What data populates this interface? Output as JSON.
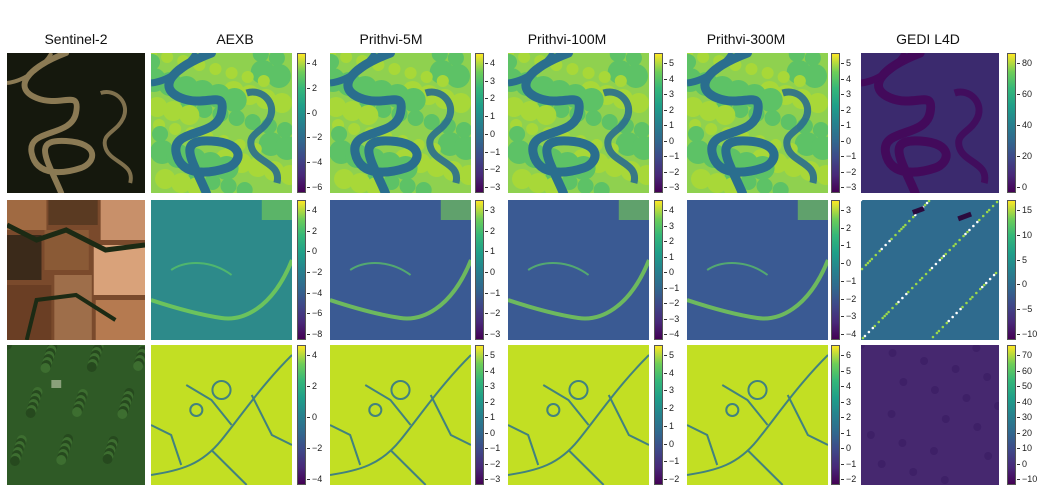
{
  "figure": {
    "columns": [
      {
        "title": "Sentinel-2"
      },
      {
        "title": "AEXB"
      },
      {
        "title": "Prithvi-5M"
      },
      {
        "title": "Prithvi-100M"
      },
      {
        "title": "Prithvi-300M"
      },
      {
        "title": "GEDI L4D"
      }
    ],
    "rows": [
      {
        "scene": "river",
        "colorbars": [
          [
            "4",
            "2",
            "0",
            "−2",
            "−4",
            "−6"
          ],
          [
            "4",
            "3",
            "2",
            "1",
            "0",
            "−1",
            "−2",
            "−3"
          ],
          [
            "5",
            "4",
            "3",
            "2",
            "1",
            "0",
            "−1",
            "−2",
            "−3"
          ],
          [
            "5",
            "4",
            "3",
            "2",
            "1",
            "0",
            "−1",
            "−2",
            "−3"
          ],
          [
            "80",
            "60",
            "40",
            "20",
            "0"
          ]
        ]
      },
      {
        "scene": "farmland",
        "colorbars": [
          [
            "4",
            "2",
            "0",
            "−2",
            "−4",
            "−6",
            "−8"
          ],
          [
            "3",
            "2",
            "1",
            "0",
            "−1",
            "−2",
            "−3"
          ],
          [
            "4",
            "3",
            "2",
            "1",
            "0",
            "−1",
            "−2",
            "−3",
            "−4"
          ],
          [
            "3",
            "2",
            "1",
            "0",
            "−1",
            "−2",
            "−3",
            "−4"
          ],
          [
            "15",
            "10",
            "5",
            "0",
            "−5",
            "−10"
          ]
        ]
      },
      {
        "scene": "forest",
        "colorbars": [
          [
            "4",
            "2",
            "0",
            "−2",
            "−4"
          ],
          [
            "5",
            "4",
            "3",
            "2",
            "1",
            "0",
            "−1",
            "−2",
            "−3"
          ],
          [
            "5",
            "4",
            "3",
            "2",
            "1",
            "0",
            "−1",
            "−2"
          ],
          [
            "6",
            "5",
            "4",
            "3",
            "2",
            "1",
            "0",
            "−1",
            "−2"
          ],
          [
            "70",
            "60",
            "50",
            "40",
            "30",
            "20",
            "10",
            "0",
            "−10"
          ]
        ]
      }
    ]
  }
}
